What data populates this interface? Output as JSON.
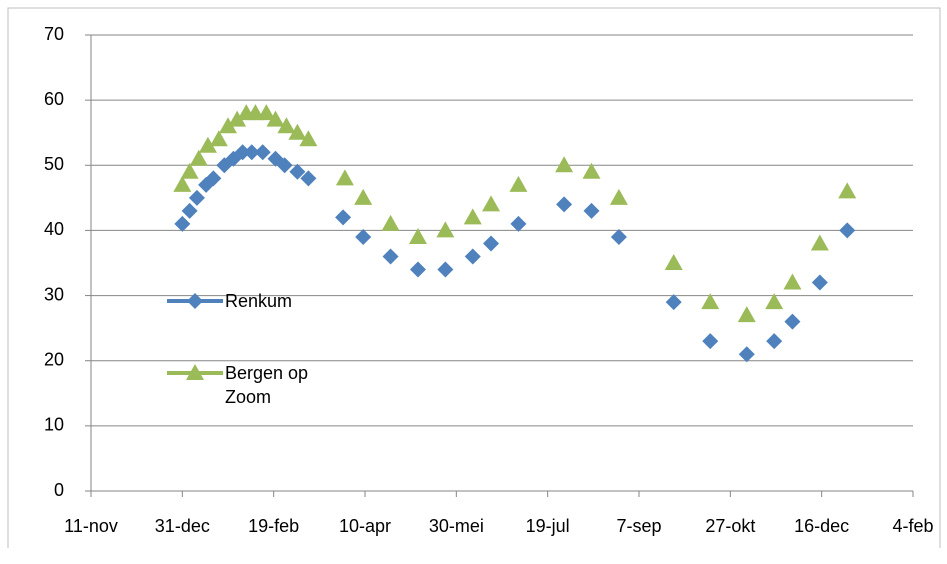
{
  "chart_data": {
    "type": "scatter",
    "legend": "left",
    "grid": true,
    "xlim": [
      0,
      450
    ],
    "xticks": [
      {
        "value": 0,
        "label": "11-nov"
      },
      {
        "value": 50,
        "label": "31-dec"
      },
      {
        "value": 100,
        "label": "19-feb"
      },
      {
        "value": 150,
        "label": "10-apr"
      },
      {
        "value": 200,
        "label": "30-mei"
      },
      {
        "value": 250,
        "label": "19-jul"
      },
      {
        "value": 300,
        "label": "7-sep"
      },
      {
        "value": 350,
        "label": "27-okt"
      },
      {
        "value": 400,
        "label": "16-dec"
      },
      {
        "value": 450,
        "label": "4-feb"
      }
    ],
    "ylim": [
      0,
      70
    ],
    "yticks": [
      0,
      10,
      20,
      30,
      40,
      50,
      60,
      70
    ],
    "series": [
      {
        "name": "Renkum",
        "color": "#4f81bd",
        "marker": "diamond",
        "x": [
          50,
          54,
          58,
          63,
          67,
          73,
          78,
          83,
          88,
          94,
          101,
          106,
          113,
          119,
          138,
          149,
          164,
          179,
          194,
          209,
          219,
          234,
          259,
          274,
          289,
          319,
          339,
          359,
          374,
          384,
          399,
          414
        ],
        "values": [
          41,
          43,
          45,
          47,
          48,
          50,
          51,
          52,
          52,
          52,
          51,
          50,
          49,
          48,
          42,
          39,
          36,
          34,
          34,
          36,
          38,
          41,
          44,
          43,
          39,
          29,
          23,
          21,
          23,
          26,
          32,
          40
        ]
      },
      {
        "name": "Bergen op Zoom",
        "color": "#9bbb59",
        "marker": "triangle",
        "x": [
          50,
          54,
          59,
          64,
          70,
          75,
          80,
          85,
          90,
          96,
          101,
          107,
          113,
          119,
          139,
          149,
          164,
          179,
          194,
          209,
          219,
          234,
          259,
          274,
          289,
          319,
          339,
          359,
          374,
          384,
          399,
          414
        ],
        "values": [
          47,
          49,
          51,
          53,
          54,
          56,
          57,
          58,
          58,
          58,
          57,
          56,
          55,
          54,
          48,
          45,
          41,
          39,
          40,
          42,
          44,
          47,
          50,
          49,
          45,
          35,
          29,
          27,
          29,
          32,
          38,
          46
        ]
      }
    ]
  }
}
